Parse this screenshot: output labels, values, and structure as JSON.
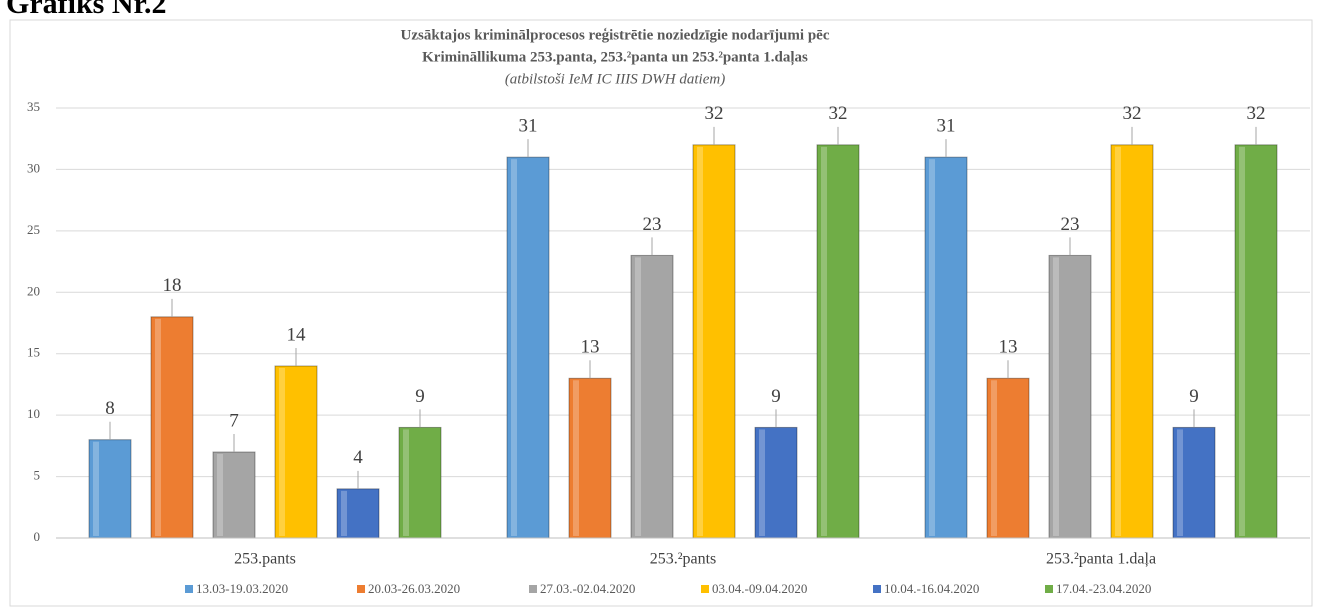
{
  "heading": "Grafiks Nr.2",
  "chart_data": {
    "type": "bar",
    "title": [
      "Uzsāktajos kriminālprocesos reģistrētie noziedzīgie nodarījumi pēc",
      "Krimināllikuma 253.panta, 253.²panta un 253.²panta 1.daļas"
    ],
    "subtitle": "(atbilstoši IeM IC IIIS DWH datiem)",
    "categories": [
      "253.pants",
      "253.²pants",
      "253.²panta 1.daļa"
    ],
    "series": [
      {
        "name": "13.03-19.03.2020",
        "color": "#5b9bd5",
        "values": [
          8,
          31,
          31
        ]
      },
      {
        "name": "20.03-26.03.2020",
        "color": "#ed7d31",
        "values": [
          18,
          13,
          13
        ]
      },
      {
        "name": "27.03.-02.04.2020",
        "color": "#a5a5a5",
        "values": [
          7,
          23,
          23
        ]
      },
      {
        "name": "03.04.-09.04.2020",
        "color": "#ffc000",
        "values": [
          14,
          32,
          32
        ]
      },
      {
        "name": "10.04.-16.04.2020",
        "color": "#4472c4",
        "values": [
          4,
          9,
          9
        ]
      },
      {
        "name": "17.04.-23.04.2020",
        "color": "#70ad47",
        "values": [
          9,
          32,
          32
        ]
      }
    ],
    "ylim": [
      0,
      35
    ],
    "yticks": [
      0,
      5,
      10,
      15,
      20,
      25,
      30,
      35
    ],
    "grid": true,
    "legend": "bottom"
  }
}
